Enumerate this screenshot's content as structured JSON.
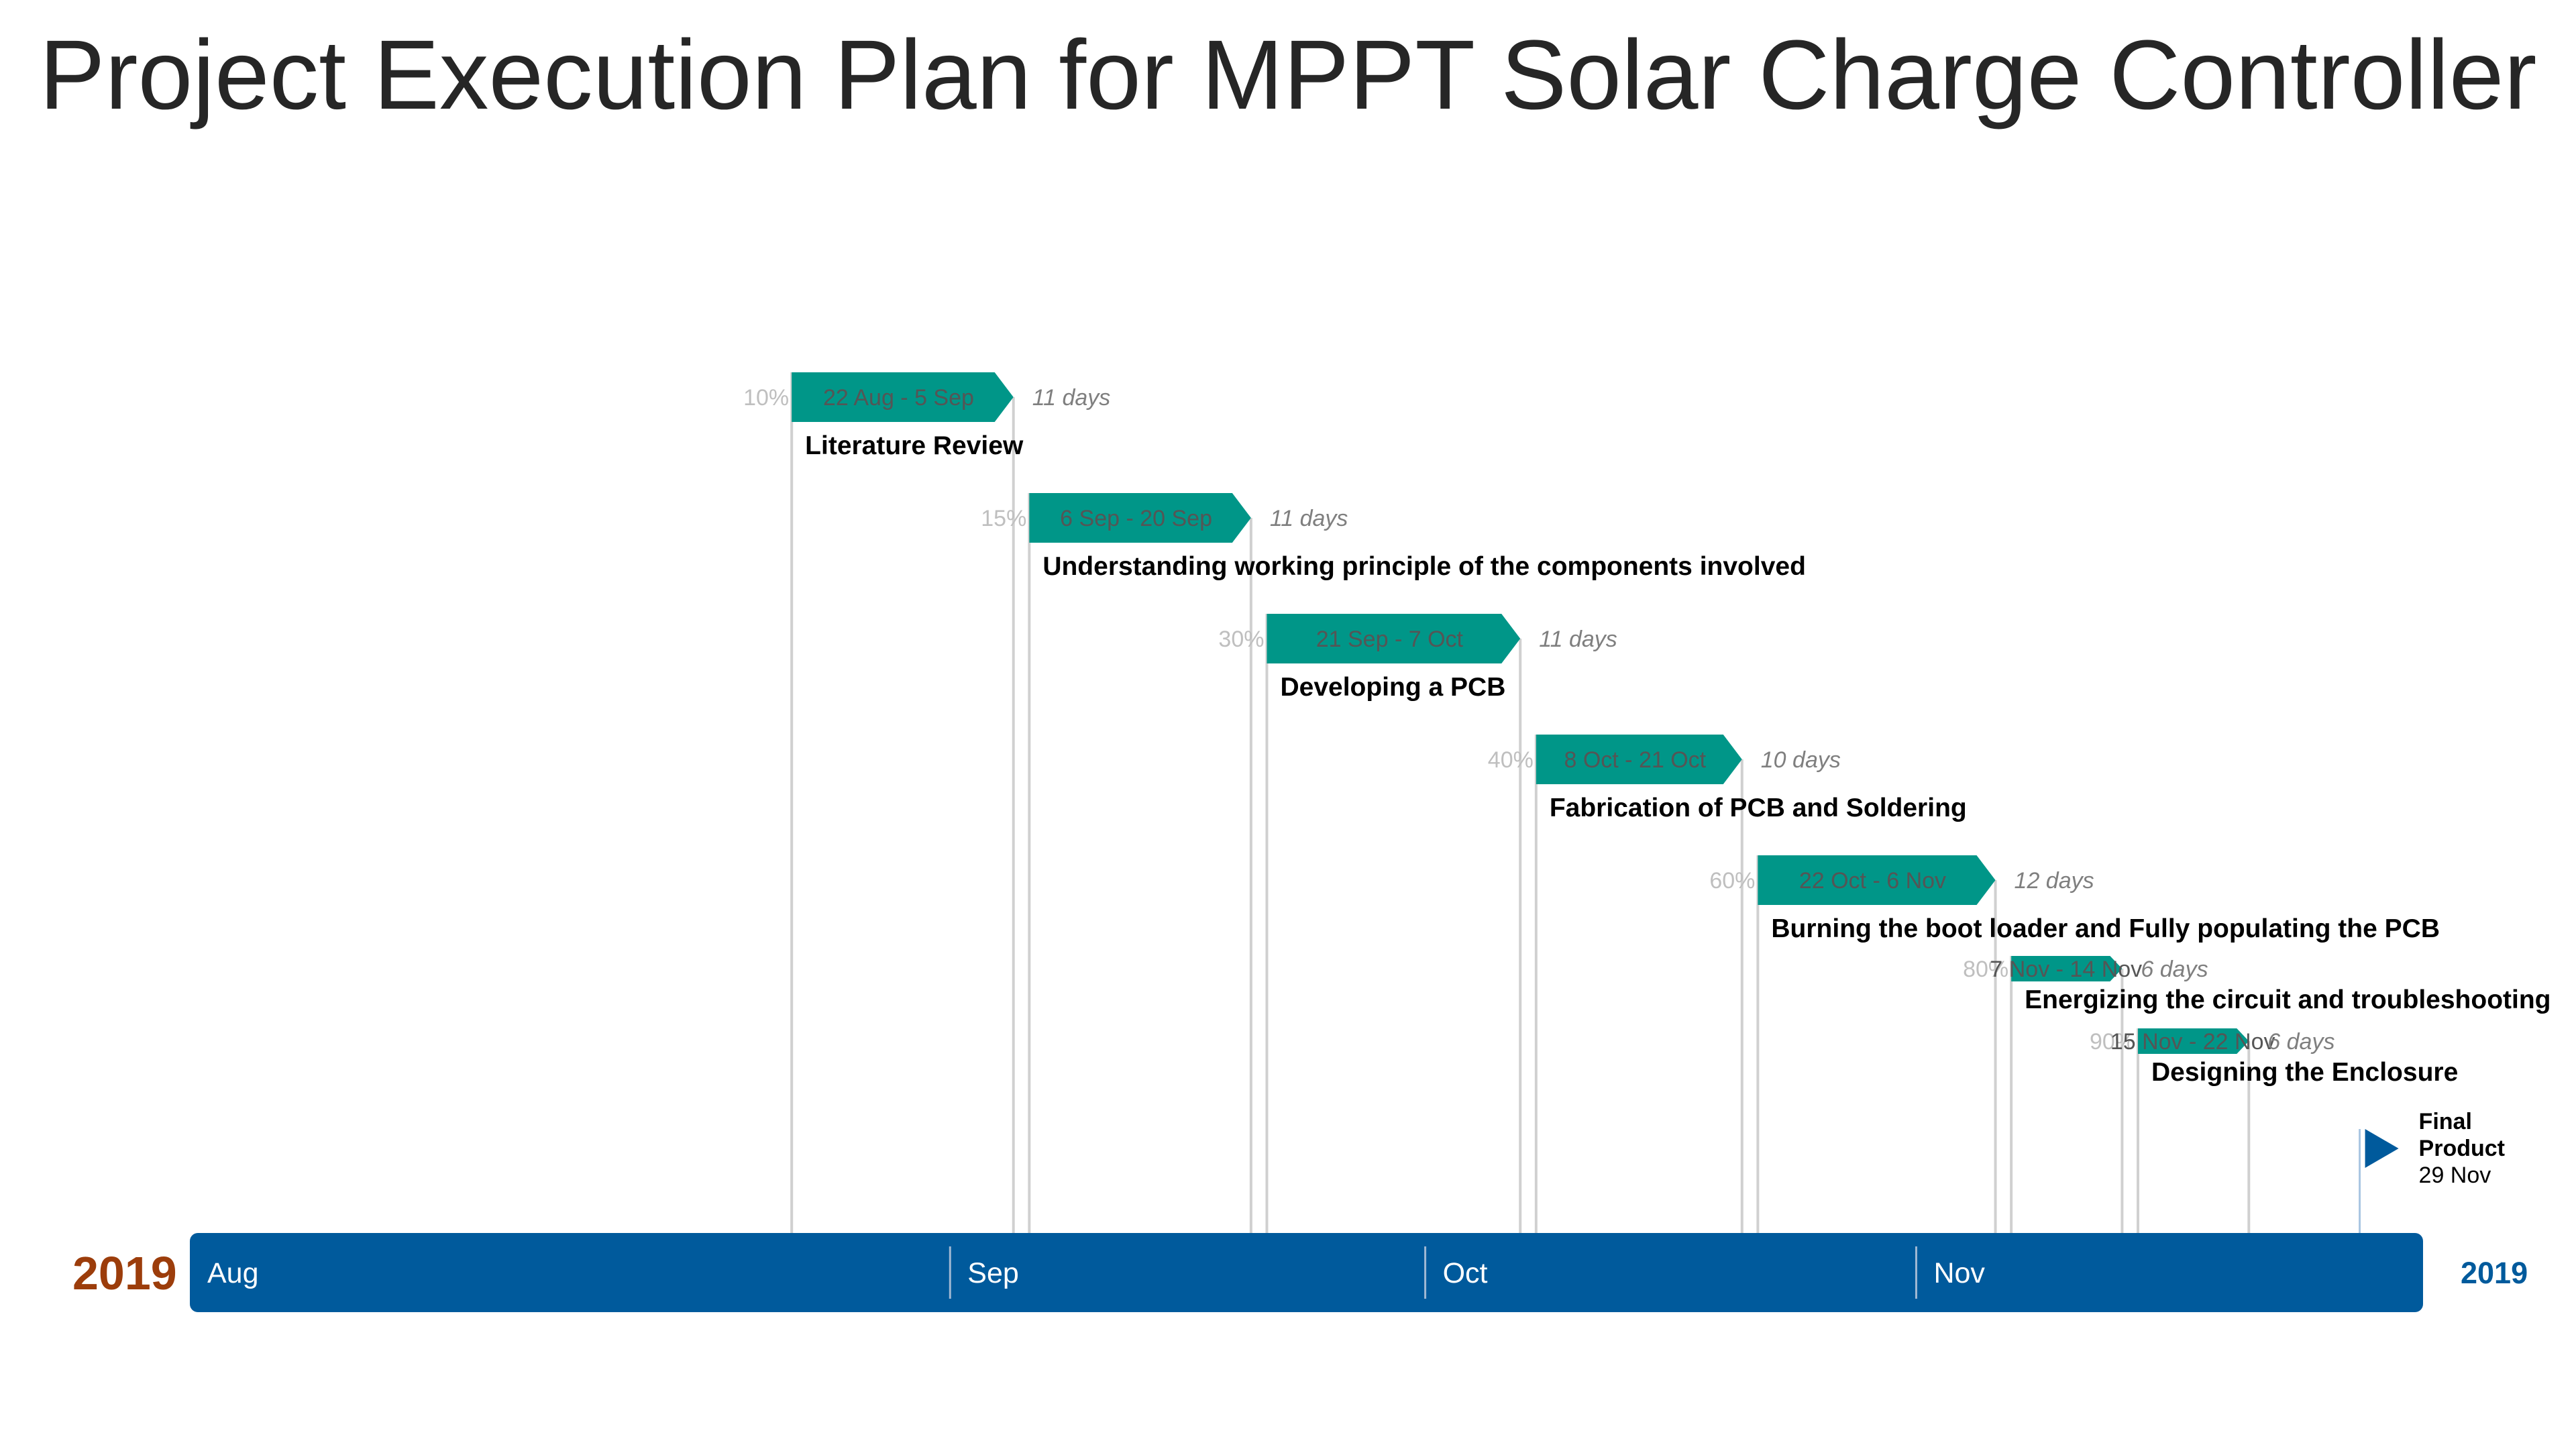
{
  "title": "Project Execution Plan for MPPT Solar Charge Controller",
  "colors": {
    "task_bar": "#009688",
    "timeline": "#005A9C",
    "year_left": "#9C3D0B",
    "year_right": "#005A9C",
    "connector": "#d0d0d0",
    "milestone": "#005A9C"
  },
  "chart_data": {
    "type": "gantt",
    "x_axis": {
      "start": "2019-07-15",
      "end": "2019-12-03",
      "months": [
        {
          "label": "Aug",
          "start": "2019-07-15"
        },
        {
          "label": "Sep",
          "start": "2019-09-01"
        },
        {
          "label": "Oct",
          "start": "2019-10-01"
        },
        {
          "label": "Nov",
          "start": "2019-11-01"
        }
      ],
      "year_left": "2019",
      "year_right": "2019"
    },
    "tasks": [
      {
        "name": "Literature Review",
        "start": "2019-08-22",
        "end": "2019-09-05",
        "dates": "22 Aug - 5 Sep",
        "duration": "11 days",
        "percent": "10%"
      },
      {
        "name": "Understanding working principle of the components involved",
        "start": "2019-09-06",
        "end": "2019-09-20",
        "dates": "6 Sep - 20 Sep",
        "duration": "11 days",
        "percent": "15%"
      },
      {
        "name": "Developing a PCB",
        "start": "2019-09-21",
        "end": "2019-10-07",
        "dates": "21 Sep - 7 Oct",
        "duration": "11 days",
        "percent": "30%"
      },
      {
        "name": "Fabrication of PCB and Soldering",
        "start": "2019-10-08",
        "end": "2019-10-21",
        "dates": "8 Oct - 21 Oct",
        "duration": "10 days",
        "percent": "40%"
      },
      {
        "name": "Burning the boot loader and Fully populating the PCB",
        "start": "2019-10-22",
        "end": "2019-11-06",
        "dates": "22 Oct - 6 Nov",
        "duration": "12 days",
        "percent": "60%"
      },
      {
        "name": "Energizing the circuit and troubleshooting",
        "start": "2019-11-07",
        "end": "2019-11-14",
        "dates": "7 Nov - 14 Nov",
        "duration": "6 days",
        "percent": "80%"
      },
      {
        "name": "Designing the Enclosure",
        "start": "2019-11-15",
        "end": "2019-11-22",
        "dates": "15 Nov - 22 Nov",
        "duration": "6 days",
        "percent": "90%"
      }
    ],
    "milestone": {
      "label_line1": "Final",
      "label_line2": "Product",
      "date": "29 Nov",
      "date_value": "2019-11-29"
    }
  }
}
